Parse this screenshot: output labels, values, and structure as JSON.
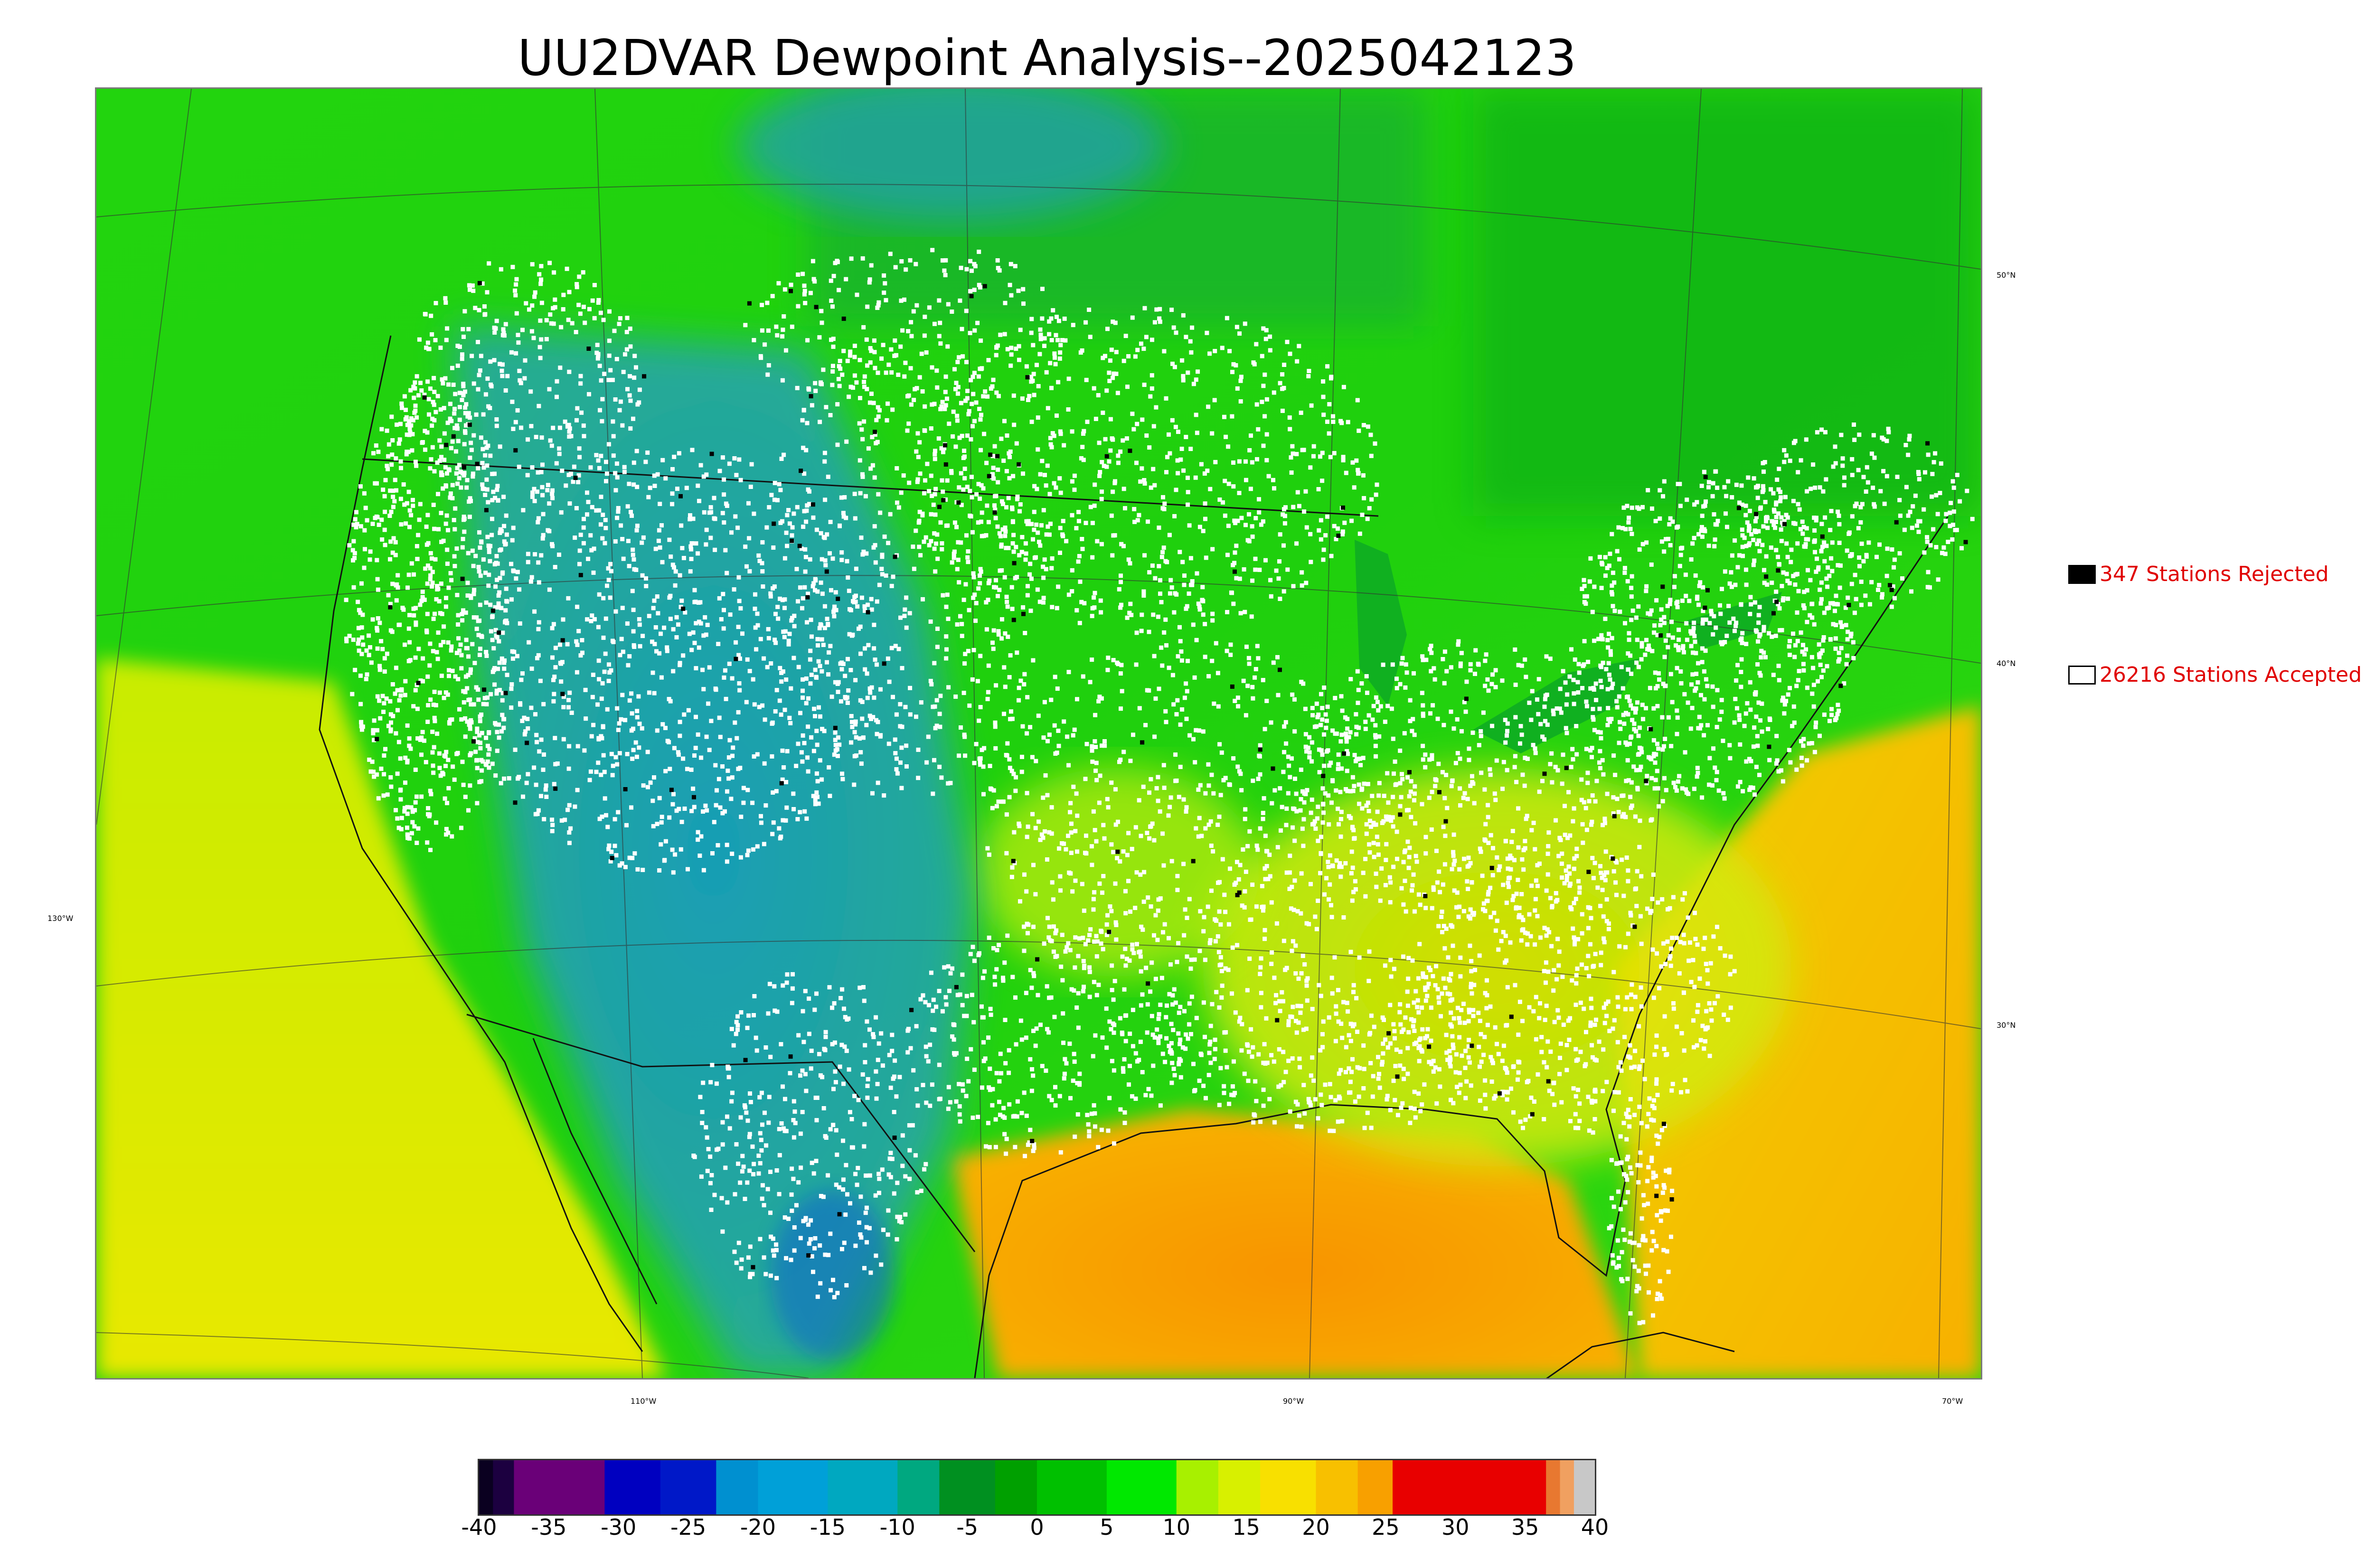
{
  "title": "UU2DVAR Dewpoint Analysis--2025042123",
  "legend": {
    "rejected": {
      "label": "347 Stations Rejected",
      "swatch_color": "#000000"
    },
    "accepted": {
      "label": "26216 Stations Accepted",
      "swatch_color": "#ffffff"
    }
  },
  "lat_labels": [
    "50°N",
    "40°N",
    "30°N"
  ],
  "lon_labels": [
    "130°W",
    "110°W",
    "90°W",
    "70°W"
  ],
  "colorbar": {
    "min": -40,
    "max": 40,
    "ticks": [
      "-40",
      "-35",
      "-30",
      "-25",
      "-20",
      "-15",
      "-10",
      "-5",
      "0",
      "5",
      "10",
      "15",
      "20",
      "25",
      "30",
      "35",
      "40"
    ],
    "segments": [
      {
        "from": -40,
        "to": -39,
        "color": "#0a0020"
      },
      {
        "from": -39,
        "to": -37.5,
        "color": "#1c0040"
      },
      {
        "from": -37.5,
        "to": -31,
        "color": "#6a0078"
      },
      {
        "from": -31,
        "to": -27,
        "color": "#0000c0"
      },
      {
        "from": -27,
        "to": -23,
        "color": "#0018c8"
      },
      {
        "from": -23,
        "to": -20,
        "color": "#0090d0"
      },
      {
        "from": -20,
        "to": -15,
        "color": "#00a0d8"
      },
      {
        "from": -15,
        "to": -10,
        "color": "#00a8c0"
      },
      {
        "from": -10,
        "to": -7,
        "color": "#00a880"
      },
      {
        "from": -7,
        "to": -3,
        "color": "#009020"
      },
      {
        "from": -3,
        "to": 0,
        "color": "#00a000"
      },
      {
        "from": 0,
        "to": 5,
        "color": "#00c000"
      },
      {
        "from": 5,
        "to": 10,
        "color": "#00e800"
      },
      {
        "from": 10,
        "to": 13,
        "color": "#a8f000"
      },
      {
        "from": 13,
        "to": 16,
        "color": "#d8f000"
      },
      {
        "from": 16,
        "to": 20,
        "color": "#f8e000"
      },
      {
        "from": 20,
        "to": 23,
        "color": "#f8c000"
      },
      {
        "from": 23,
        "to": 25.5,
        "color": "#f8a000"
      },
      {
        "from": 25.5,
        "to": 36.5,
        "color": "#e80000"
      },
      {
        "from": 36.5,
        "to": 37.5,
        "color": "#e87830"
      },
      {
        "from": 37.5,
        "to": 38.5,
        "color": "#f0a060"
      },
      {
        "from": 38.5,
        "to": 40,
        "color": "#c8c8c8"
      }
    ]
  },
  "colors": {
    "ocean_warm": "#f8a800",
    "gulf": "#f89000",
    "land_green": "#00c000",
    "mountain_blue": "#20a0b0",
    "southeast_yellow": "#e8e000"
  }
}
